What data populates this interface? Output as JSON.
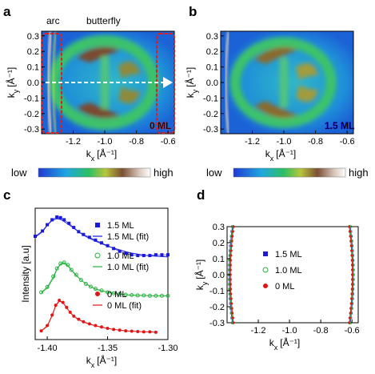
{
  "panels": {
    "a": {
      "label": "a",
      "region_arc": "arc",
      "region_butterfly": "butterfly",
      "coverage": "0 ML",
      "xlabel": "k",
      "xlabel_sub": "x",
      "xunit": "[Å⁻¹]",
      "ylabel": "k",
      "ylabel_sub": "y",
      "yunit": "[Å⁻¹]",
      "xticks": [
        "-1.2",
        "-1.0",
        "-0.8",
        "-0.6"
      ],
      "yticks": [
        "0.3",
        "0.2",
        "0.1",
        "0.0",
        "-0.1",
        "-0.2",
        "-0.3"
      ]
    },
    "b": {
      "label": "b",
      "coverage": "1.5 ML",
      "xlabel": "k",
      "xlabel_sub": "x",
      "xunit": "[Å⁻¹]",
      "ylabel": "k",
      "ylabel_sub": "y",
      "yunit": "[Å⁻¹]",
      "xticks": [
        "-1.2",
        "-1.0",
        "-0.8",
        "-0.6"
      ],
      "yticks": [
        "0.3",
        "0.2",
        "0.1",
        "0.0",
        "-0.1",
        "-0.2",
        "-0.3"
      ]
    },
    "colorbar": {
      "low": "low",
      "high": "high"
    },
    "c": {
      "label": "c"
    },
    "d": {
      "label": "d"
    }
  },
  "colors": {
    "series_15": "#1a1adf",
    "series_10": "#22b43a",
    "series_0": "#e11515",
    "highlight_box": "#e01e1e",
    "arrow": "#ffffff"
  },
  "chart_data": [
    {
      "type": "line",
      "panel": "c",
      "xlabel": "k",
      "xlabel_sub": "x",
      "xunit": "[Å⁻¹]",
      "ylabel": "Intensity [a.u]",
      "xlim": [
        -1.41,
        -1.3
      ],
      "xticks": [
        "-1.40",
        "-1.35",
        "-1.30"
      ],
      "series": [
        {
          "name": "1.5 ML",
          "fit_name": "1.5 ML (fit)",
          "marker": "square",
          "offset": 2.2,
          "x": [
            -1.41,
            -1.404,
            -1.4,
            -1.396,
            -1.392,
            -1.389,
            -1.386,
            -1.382,
            -1.378,
            -1.374,
            -1.37,
            -1.365,
            -1.36,
            -1.355,
            -1.35,
            -1.345,
            -1.34,
            -1.335,
            -1.33,
            -1.325,
            -1.32,
            -1.315,
            -1.31,
            -1.305,
            -1.3
          ],
          "y": [
            0.55,
            0.7,
            0.88,
            1.02,
            1.1,
            1.08,
            1.02,
            0.92,
            0.8,
            0.68,
            0.6,
            0.52,
            0.44,
            0.36,
            0.28,
            0.2,
            0.12,
            0.06,
            0.02,
            0.0,
            0.0,
            0.0,
            0.02,
            0.02,
            0.02
          ],
          "fit_y": [
            0.52,
            0.68,
            0.86,
            1.0,
            1.05,
            1.03,
            0.97,
            0.88,
            0.78,
            0.68,
            0.58,
            0.49,
            0.41,
            0.34,
            0.27,
            0.21,
            0.16,
            0.11,
            0.07,
            0.04,
            0.01,
            -0.01,
            -0.02,
            -0.03,
            -0.04
          ]
        },
        {
          "name": "1.0 ML",
          "fit_name": "1.0 ML (fit)",
          "marker": "circle",
          "offset": 1.05,
          "x": [
            -1.405,
            -1.4,
            -1.395,
            -1.392,
            -1.389,
            -1.386,
            -1.383,
            -1.38,
            -1.376,
            -1.372,
            -1.368,
            -1.364,
            -1.36,
            -1.355,
            -1.35,
            -1.345,
            -1.34,
            -1.335,
            -1.33,
            -1.325,
            -1.32,
            -1.315,
            -1.31,
            -1.305,
            -1.3
          ],
          "y": [
            0.1,
            0.25,
            0.55,
            0.78,
            0.92,
            0.95,
            0.88,
            0.74,
            0.6,
            0.45,
            0.34,
            0.26,
            0.2,
            0.15,
            0.1,
            0.07,
            0.05,
            0.03,
            0.02,
            0.01,
            0.01,
            0.0,
            0.0,
            0.0,
            0.0
          ],
          "fit_y": [
            0.08,
            0.22,
            0.5,
            0.76,
            0.9,
            0.93,
            0.86,
            0.73,
            0.58,
            0.45,
            0.34,
            0.26,
            0.19,
            0.14,
            0.1,
            0.07,
            0.05,
            0.03,
            0.02,
            0.01,
            0.01,
            0.0,
            0.0,
            0.0,
            0.0
          ]
        },
        {
          "name": "0 ML",
          "fit_name": "0 ML (fit)",
          "marker": "disc",
          "offset": 0.0,
          "x": [
            -1.405,
            -1.4,
            -1.396,
            -1.393,
            -1.39,
            -1.387,
            -1.384,
            -1.381,
            -1.378,
            -1.374,
            -1.37,
            -1.365,
            -1.36,
            -1.355,
            -1.35,
            -1.345,
            -1.34,
            -1.335,
            -1.33,
            -1.325,
            -1.32,
            -1.315,
            -1.31
          ],
          "y": [
            0.05,
            0.2,
            0.5,
            0.78,
            0.92,
            0.86,
            0.72,
            0.58,
            0.47,
            0.38,
            0.31,
            0.25,
            0.2,
            0.16,
            0.12,
            0.09,
            0.07,
            0.05,
            0.04,
            0.03,
            0.02,
            0.02,
            0.01
          ],
          "fit_y": [
            0.04,
            0.18,
            0.48,
            0.76,
            0.9,
            0.85,
            0.71,
            0.57,
            0.46,
            0.37,
            0.3,
            0.24,
            0.19,
            0.15,
            0.12,
            0.09,
            0.07,
            0.05,
            0.04,
            0.03,
            0.02,
            0.02,
            0.01
          ]
        }
      ]
    },
    {
      "type": "scatter",
      "panel": "d",
      "xlabel": "k",
      "xlabel_sub": "x",
      "xunit": "[Å⁻¹]",
      "ylabel": "k",
      "ylabel_sub": "y",
      "yunit": "[Å⁻¹]",
      "xlim": [
        -1.4,
        -0.56
      ],
      "ylim": [
        -0.3,
        0.3
      ],
      "xticks": [
        "-1.2",
        "-1.0",
        "-0.8",
        "-0.6"
      ],
      "yticks": [
        "0.3",
        "0.2",
        "0.1",
        "0.0",
        "-0.1",
        "-0.2",
        "-0.3"
      ],
      "series": [
        {
          "name": "1.5 ML",
          "marker": "square",
          "left_k0": -1.386,
          "right_k0": -0.591
        },
        {
          "name": "1.0 ML",
          "marker": "circle",
          "left_k0": -1.382,
          "right_k0": -0.595
        },
        {
          "name": "0 ML",
          "marker": "disc",
          "left_k0": -1.378,
          "right_k0": -0.598
        }
      ],
      "curvature": 0.22,
      "ky_points": [
        -0.3,
        -0.27,
        -0.24,
        -0.21,
        -0.18,
        -0.15,
        -0.12,
        -0.09,
        -0.06,
        -0.03,
        0.0,
        0.03,
        0.06,
        0.09,
        0.12,
        0.15,
        0.18,
        0.21,
        0.24,
        0.27,
        0.3
      ]
    }
  ]
}
